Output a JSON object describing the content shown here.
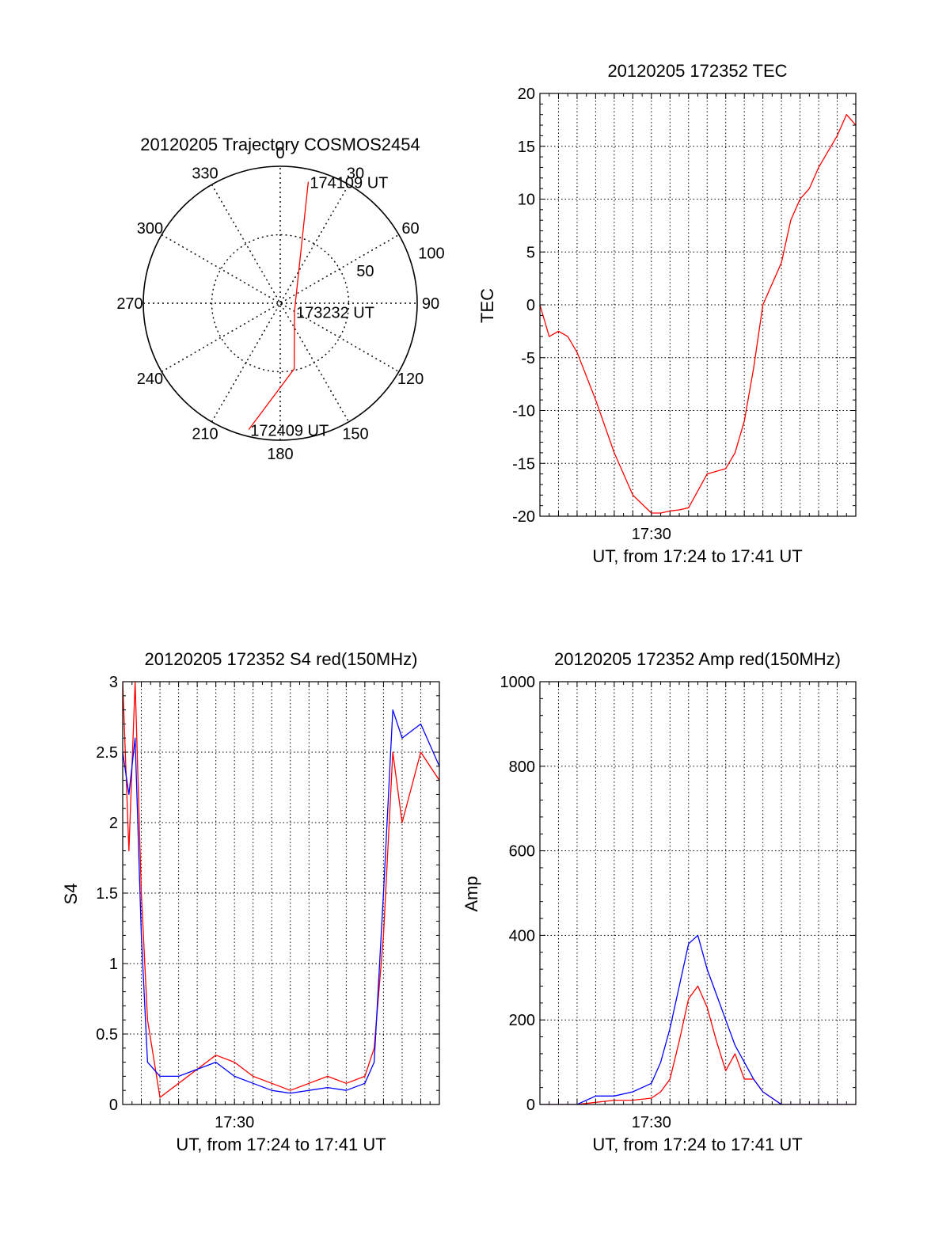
{
  "chart_data": [
    {
      "type": "polar",
      "title": "20120205 Trajectory COSMOS2454",
      "azimuth_ticks": [
        "0",
        "30",
        "60",
        "90",
        "120",
        "150",
        "180",
        "210",
        "240",
        "270",
        "300",
        "330"
      ],
      "radial_ticks": [
        "50",
        "100"
      ],
      "rmax": 100,
      "grid": true,
      "trajectory_color": "#ff0000",
      "trajectory": [
        {
          "az": 13,
          "r": 91
        },
        {
          "az": 120,
          "r": 12
        },
        {
          "az": 168,
          "r": 49
        },
        {
          "az": 194,
          "r": 95
        }
      ],
      "annotations": [
        {
          "text": "174109 UT",
          "az": 13,
          "r": 91
        },
        {
          "text": "173232 UT",
          "az": 120,
          "r": 12
        },
        {
          "text": "172409 UT",
          "az": 194,
          "r": 95
        }
      ]
    },
    {
      "type": "line",
      "title": "20120205 172352 TEC",
      "xlabel": "UT, from 17:24 to 17:41 UT",
      "ylabel": "TEC",
      "xlim": [
        "17:24",
        "17:41"
      ],
      "ylim": [
        -20,
        20
      ],
      "yticks": [
        "-20",
        "-15",
        "-10",
        "-5",
        "0",
        "5",
        "10",
        "15",
        "20"
      ],
      "xticks": [
        "17:30"
      ],
      "grid": true,
      "series": [
        {
          "color": "#ff0000",
          "x": [
            "17:24:00",
            "17:24:30",
            "17:25:00",
            "17:25:30",
            "17:26:00",
            "17:27:00",
            "17:28:00",
            "17:29:00",
            "17:30:00",
            "17:30:30",
            "17:31:00",
            "17:31:30",
            "17:32:00",
            "17:33:00",
            "17:34:00",
            "17:34:30",
            "17:35:00",
            "17:35:30",
            "17:36:00",
            "17:37:00",
            "17:37:30",
            "17:38:00",
            "17:38:30",
            "17:39:00",
            "17:40:00",
            "17:40:30",
            "17:41:00"
          ],
          "values": [
            0,
            -3,
            -2.5,
            -3,
            -4.5,
            -9,
            -14,
            -18,
            -19.7,
            -19.7,
            -19.5,
            -19.4,
            -19.2,
            -16,
            -15.5,
            -14,
            -11,
            -6,
            0,
            4,
            8,
            10,
            11,
            13,
            16,
            18,
            17
          ]
        }
      ]
    },
    {
      "type": "line",
      "title": "20120205 172352 S4 red(150MHz)",
      "xlabel": "UT, from 17:24 to 17:41 UT",
      "ylabel": "S4",
      "xlim": [
        "17:24",
        "17:41"
      ],
      "ylim": [
        0,
        3
      ],
      "yticks": [
        "0",
        "0.5",
        "1",
        "1.5",
        "2",
        "2.5",
        "3"
      ],
      "xticks": [
        "17:30"
      ],
      "grid": true,
      "series": [
        {
          "color": "#ff0000",
          "x": [
            "17:24:00",
            "17:24:20",
            "17:24:40",
            "17:25:00",
            "17:25:20",
            "17:26:00",
            "17:27:00",
            "17:28:00",
            "17:29:00",
            "17:30:00",
            "17:31:00",
            "17:32:00",
            "17:33:00",
            "17:34:00",
            "17:35:00",
            "17:36:00",
            "17:37:00",
            "17:37:30",
            "17:38:00",
            "17:38:30",
            "17:39:00",
            "17:40:00",
            "17:41:00"
          ],
          "values": [
            3,
            1.8,
            3,
            1.5,
            0.6,
            0.05,
            0.15,
            0.25,
            0.35,
            0.3,
            0.2,
            0.15,
            0.1,
            0.15,
            0.2,
            0.15,
            0.2,
            0.4,
            1.2,
            2.5,
            2.0,
            2.5,
            2.3
          ]
        },
        {
          "color": "#0000ff",
          "x": [
            "17:24:00",
            "17:24:20",
            "17:24:40",
            "17:25:00",
            "17:25:20",
            "17:26:00",
            "17:27:00",
            "17:28:00",
            "17:29:00",
            "17:30:00",
            "17:31:00",
            "17:32:00",
            "17:33:00",
            "17:34:00",
            "17:35:00",
            "17:36:00",
            "17:37:00",
            "17:37:30",
            "17:38:00",
            "17:38:30",
            "17:39:00",
            "17:40:00",
            "17:41:00"
          ],
          "values": [
            2.5,
            2.2,
            2.6,
            1.2,
            0.3,
            0.2,
            0.2,
            0.25,
            0.3,
            0.2,
            0.15,
            0.1,
            0.08,
            0.1,
            0.12,
            0.1,
            0.15,
            0.3,
            1.5,
            2.8,
            2.6,
            2.7,
            2.4
          ]
        }
      ]
    },
    {
      "type": "line",
      "title": "20120205 172352 Amp red(150MHz)",
      "xlabel": "UT, from 17:24 to 17:41 UT",
      "ylabel": "Amp",
      "xlim": [
        "17:24",
        "17:41"
      ],
      "ylim": [
        0,
        1000
      ],
      "yticks": [
        "0",
        "200",
        "400",
        "600",
        "800",
        "1000"
      ],
      "xticks": [
        "17:30"
      ],
      "grid": true,
      "series": [
        {
          "color": "#ff0000",
          "x": [
            "17:24:00",
            "17:25:00",
            "17:26:00",
            "17:27:00",
            "17:28:00",
            "17:29:00",
            "17:30:00",
            "17:30:30",
            "17:31:00",
            "17:31:30",
            "17:32:00",
            "17:32:30",
            "17:33:00",
            "17:33:30",
            "17:34:00",
            "17:34:30",
            "17:35:00",
            "17:35:30",
            "17:36:00",
            "17:37:00",
            "17:38:00",
            "17:39:00",
            "17:40:00",
            "17:41:00"
          ],
          "values": [
            0,
            0,
            0,
            5,
            10,
            10,
            15,
            30,
            60,
            150,
            250,
            280,
            230,
            150,
            80,
            120,
            60,
            60,
            30,
            0,
            0,
            0,
            0,
            0
          ]
        },
        {
          "color": "#0000ff",
          "x": [
            "17:24:00",
            "17:25:00",
            "17:26:00",
            "17:27:00",
            "17:28:00",
            "17:29:00",
            "17:30:00",
            "17:30:30",
            "17:31:00",
            "17:31:30",
            "17:32:00",
            "17:32:30",
            "17:33:00",
            "17:33:30",
            "17:34:00",
            "17:34:30",
            "17:35:00",
            "17:35:30",
            "17:36:00",
            "17:37:00",
            "17:38:00",
            "17:39:00",
            "17:40:00",
            "17:41:00"
          ],
          "values": [
            0,
            0,
            0,
            20,
            20,
            30,
            50,
            100,
            180,
            280,
            380,
            400,
            320,
            260,
            200,
            140,
            100,
            60,
            30,
            0,
            0,
            0,
            0,
            0
          ]
        }
      ]
    }
  ]
}
